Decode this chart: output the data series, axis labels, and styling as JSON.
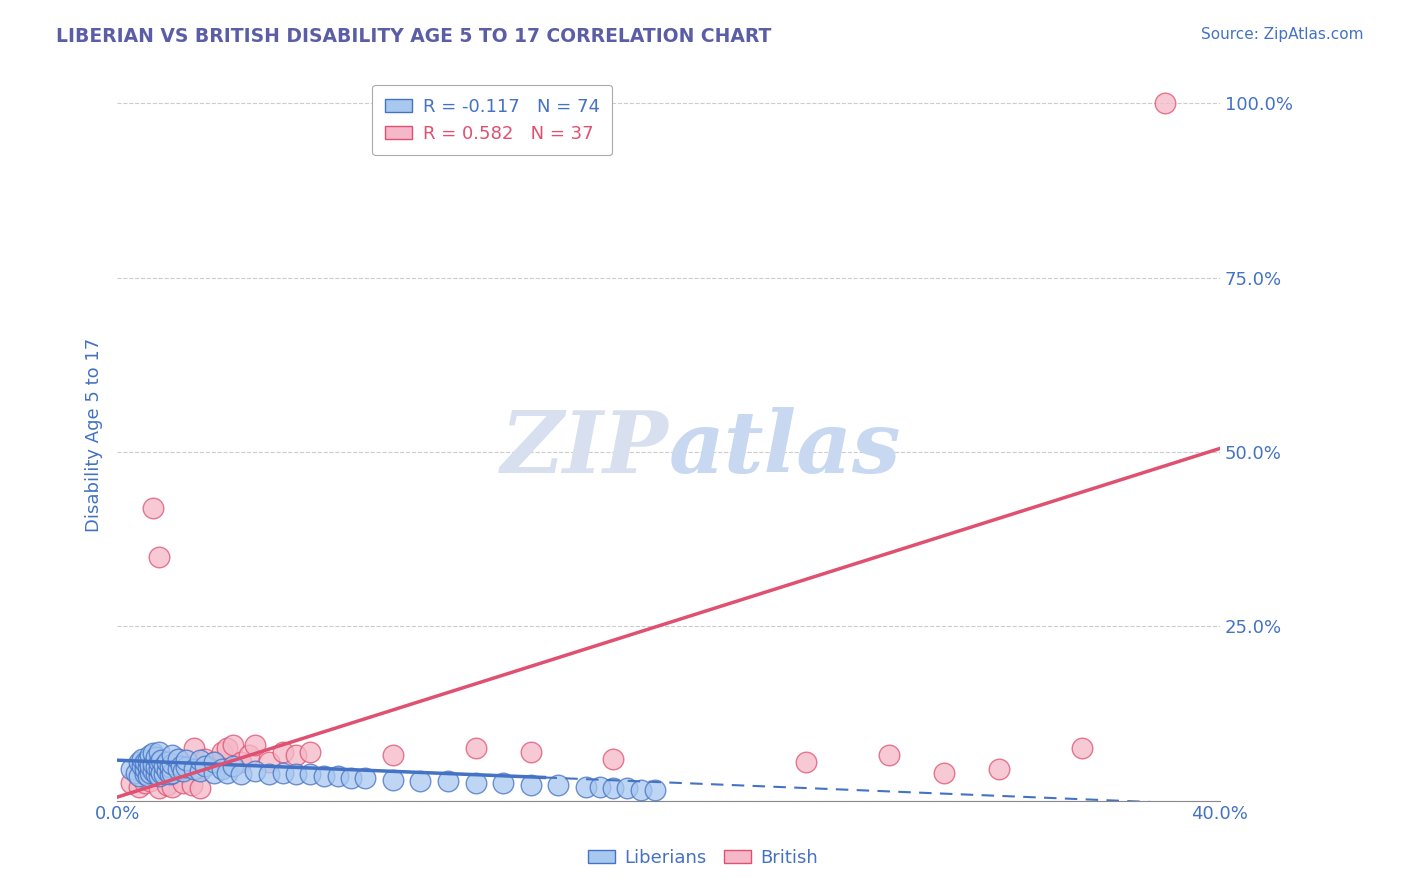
{
  "title": "LIBERIAN VS BRITISH DISABILITY AGE 5 TO 17 CORRELATION CHART",
  "source": "Source: ZipAtlas.com",
  "ylabel_label": "Disability Age 5 to 17",
  "xlim": [
    0.0,
    0.4
  ],
  "ylim": [
    0.0,
    1.05
  ],
  "x_ticks": [
    0.0,
    0.05,
    0.1,
    0.15,
    0.2,
    0.25,
    0.3,
    0.35,
    0.4
  ],
  "y_ticks": [
    0.0,
    0.25,
    0.5,
    0.75,
    1.0
  ],
  "y_tick_labels": [
    "",
    "25.0%",
    "50.0%",
    "75.0%",
    "100.0%"
  ],
  "legend_entry1": "R = -0.117   N = 74",
  "legend_entry2": "R = 0.582   N = 37",
  "liberian_color": "#A8C8F0",
  "british_color": "#F4B8C8",
  "liberian_trend_color": "#4472C4",
  "british_trend_color": "#E05070",
  "title_color": "#5B5EA6",
  "axis_label_color": "#4472C4",
  "tick_color": "#4472C4",
  "grid_color": "#CCCCCC",
  "watermark_color": "#D8E0F0",
  "liberian_scatter": {
    "x": [
      0.005,
      0.007,
      0.008,
      0.008,
      0.009,
      0.009,
      0.01,
      0.01,
      0.01,
      0.011,
      0.011,
      0.011,
      0.012,
      0.012,
      0.012,
      0.013,
      0.013,
      0.013,
      0.014,
      0.014,
      0.014,
      0.015,
      0.015,
      0.015,
      0.015,
      0.016,
      0.016,
      0.017,
      0.017,
      0.018,
      0.018,
      0.019,
      0.019,
      0.02,
      0.02,
      0.02,
      0.022,
      0.022,
      0.023,
      0.024,
      0.025,
      0.025,
      0.028,
      0.03,
      0.03,
      0.032,
      0.035,
      0.035,
      0.038,
      0.04,
      0.042,
      0.045,
      0.05,
      0.055,
      0.06,
      0.065,
      0.07,
      0.075,
      0.08,
      0.085,
      0.09,
      0.1,
      0.11,
      0.12,
      0.13,
      0.14,
      0.15,
      0.16,
      0.17,
      0.175,
      0.18,
      0.185,
      0.19,
      0.195
    ],
    "y": [
      0.045,
      0.04,
      0.055,
      0.035,
      0.05,
      0.06,
      0.038,
      0.045,
      0.055,
      0.035,
      0.048,
      0.058,
      0.04,
      0.05,
      0.065,
      0.042,
      0.052,
      0.068,
      0.038,
      0.048,
      0.062,
      0.035,
      0.045,
      0.055,
      0.07,
      0.04,
      0.058,
      0.038,
      0.05,
      0.042,
      0.055,
      0.038,
      0.048,
      0.04,
      0.052,
      0.065,
      0.045,
      0.06,
      0.05,
      0.042,
      0.048,
      0.058,
      0.045,
      0.042,
      0.058,
      0.05,
      0.04,
      0.055,
      0.045,
      0.04,
      0.05,
      0.038,
      0.042,
      0.038,
      0.04,
      0.038,
      0.038,
      0.035,
      0.035,
      0.033,
      0.033,
      0.03,
      0.028,
      0.028,
      0.025,
      0.025,
      0.023,
      0.022,
      0.02,
      0.02,
      0.018,
      0.018,
      0.015,
      0.015
    ]
  },
  "british_scatter": {
    "x": [
      0.005,
      0.008,
      0.01,
      0.012,
      0.013,
      0.015,
      0.015,
      0.018,
      0.02,
      0.022,
      0.024,
      0.025,
      0.027,
      0.028,
      0.03,
      0.032,
      0.035,
      0.038,
      0.04,
      0.042,
      0.045,
      0.048,
      0.05,
      0.055,
      0.06,
      0.065,
      0.07,
      0.1,
      0.13,
      0.15,
      0.18,
      0.25,
      0.28,
      0.3,
      0.32,
      0.35,
      0.38
    ],
    "y": [
      0.025,
      0.02,
      0.025,
      0.028,
      0.42,
      0.018,
      0.35,
      0.022,
      0.02,
      0.06,
      0.025,
      0.045,
      0.022,
      0.075,
      0.018,
      0.06,
      0.055,
      0.07,
      0.075,
      0.08,
      0.055,
      0.065,
      0.08,
      0.055,
      0.07,
      0.065,
      0.07,
      0.065,
      0.075,
      0.07,
      0.06,
      0.055,
      0.065,
      0.04,
      0.045,
      0.075,
      1.0
    ]
  },
  "liberian_trendline": {
    "x_solid_start": 0.0,
    "x_solid_end": 0.155,
    "x_dashed_start": 0.155,
    "x_dashed_end": 0.4,
    "slope": -0.16,
    "intercept": 0.058
  },
  "british_trendline": {
    "x_solid_start": 0.0,
    "x_solid_end": 0.4,
    "slope": 1.25,
    "intercept": 0.005
  }
}
